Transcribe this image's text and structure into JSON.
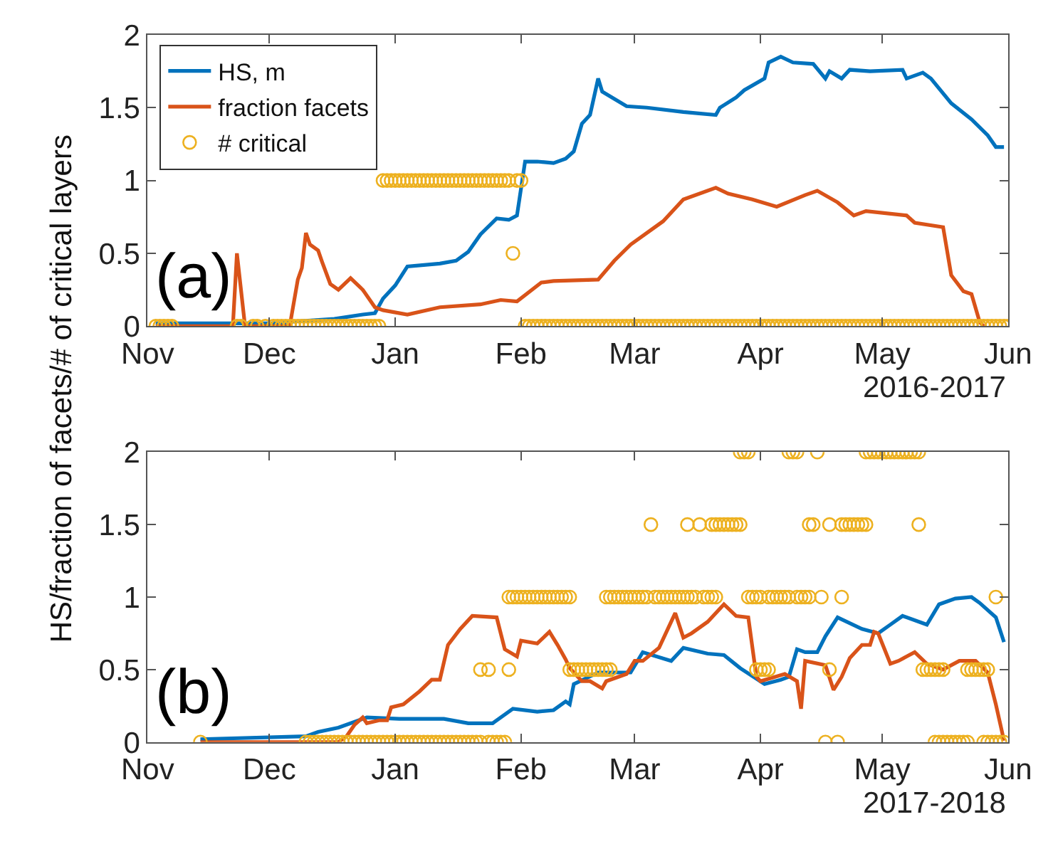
{
  "chart_data": [
    {
      "type": "line",
      "xlabel": "2016-2017",
      "ylabel": "HS/fraction of facets/# of critical layers",
      "annotations": [
        "(a)"
      ],
      "legend": "top left",
      "xlim": [
        "2016-11-01",
        "2017-06-01"
      ],
      "xticks": [
        {
          "value": "2016-11-01",
          "label": "Nov"
        },
        {
          "value": "2016-12-01",
          "label": "Dec"
        },
        {
          "value": "2017-01-01",
          "label": "Jan"
        },
        {
          "value": "2017-02-01",
          "label": "Feb"
        },
        {
          "value": "2017-03-01",
          "label": "Mar"
        },
        {
          "value": "2017-04-01",
          "label": "Apr"
        },
        {
          "value": "2017-05-01",
          "label": "May"
        },
        {
          "value": "2017-06-01",
          "label": "Jun"
        }
      ],
      "ylim": [
        0,
        2
      ],
      "yticks": [
        0,
        0.5,
        1,
        1.5,
        2
      ],
      "series": [
        {
          "name": "HS, m",
          "color": "#0072bd",
          "x": [
            "2016-11-03",
            "2016-12-04",
            "2016-12-06",
            "2016-12-17",
            "2016-12-24",
            "2016-12-27",
            "2016-12-29",
            "2017-01-01",
            "2017-01-04",
            "2017-01-12",
            "2017-01-16",
            "2017-01-19",
            "2017-01-22",
            "2017-01-26",
            "2017-01-29",
            "2017-01-31",
            "2017-02-02",
            "2017-02-05",
            "2017-02-09",
            "2017-02-12",
            "2017-02-14",
            "2017-02-16",
            "2017-02-18",
            "2017-02-20",
            "2017-02-21",
            "2017-02-24",
            "2017-02-27",
            "2017-03-04",
            "2017-03-13",
            "2017-03-21",
            "2017-03-22",
            "2017-03-26",
            "2017-03-28",
            "2017-04-02",
            "2017-04-03",
            "2017-04-06",
            "2017-04-09",
            "2017-04-14",
            "2017-04-17",
            "2017-04-18",
            "2017-04-21",
            "2017-04-23",
            "2017-04-28",
            "2017-05-06",
            "2017-05-07",
            "2017-05-11",
            "2017-05-13",
            "2017-05-18",
            "2017-05-23",
            "2017-05-27",
            "2017-05-29",
            "2017-05-31"
          ],
          "values": [
            0.02,
            0.02,
            0.03,
            0.05,
            0.08,
            0.09,
            0.19,
            0.28,
            0.41,
            0.43,
            0.45,
            0.51,
            0.63,
            0.74,
            0.73,
            0.76,
            1.13,
            1.13,
            1.12,
            1.15,
            1.2,
            1.39,
            1.45,
            1.7,
            1.61,
            1.56,
            1.51,
            1.5,
            1.47,
            1.45,
            1.5,
            1.57,
            1.62,
            1.7,
            1.81,
            1.85,
            1.81,
            1.8,
            1.7,
            1.75,
            1.7,
            1.76,
            1.75,
            1.76,
            1.7,
            1.74,
            1.7,
            1.53,
            1.42,
            1.31,
            1.23,
            1.23
          ]
        },
        {
          "name": "fraction facets",
          "color": "#d95319",
          "x": [
            "2016-11-03",
            "2016-11-22",
            "2016-11-23",
            "2016-11-25",
            "2016-12-05",
            "2016-12-06",
            "2016-12-08",
            "2016-12-09",
            "2016-12-10",
            "2016-12-11",
            "2016-12-13",
            "2016-12-14",
            "2016-12-16",
            "2016-12-18",
            "2016-12-21",
            "2016-12-24",
            "2016-12-27",
            "2016-12-29",
            "2017-01-04",
            "2017-01-12",
            "2017-01-22",
            "2017-01-27",
            "2017-01-31",
            "2017-02-06",
            "2017-02-09",
            "2017-02-20",
            "2017-02-24",
            "2017-02-28",
            "2017-03-08",
            "2017-03-13",
            "2017-03-21",
            "2017-03-24",
            "2017-03-30",
            "2017-04-05",
            "2017-04-12",
            "2017-04-15",
            "2017-04-20",
            "2017-04-24",
            "2017-04-27",
            "2017-05-07",
            "2017-05-09",
            "2017-05-16",
            "2017-05-18",
            "2017-05-21",
            "2017-05-23",
            "2017-05-25",
            "2017-05-26"
          ],
          "values": [
            0,
            0,
            0.5,
            0,
            0,
            0,
            0.32,
            0.4,
            0.64,
            0.56,
            0.52,
            0.44,
            0.29,
            0.25,
            0.33,
            0.25,
            0.13,
            0.11,
            0.08,
            0.13,
            0.15,
            0.18,
            0.17,
            0.3,
            0.31,
            0.32,
            0.45,
            0.56,
            0.72,
            0.87,
            0.95,
            0.91,
            0.87,
            0.82,
            0.9,
            0.93,
            0.85,
            0.76,
            0.79,
            0.76,
            0.71,
            0.68,
            0.35,
            0.24,
            0.22,
            0.03,
            0
          ]
        },
        {
          "name": "# critical",
          "color": "#edb120",
          "type": "scatter",
          "marker": "circle",
          "x": [
            "2016-11-03",
            "2016-11-04",
            "2016-11-05",
            "2016-11-06",
            "2016-11-07",
            "2016-11-23",
            "2016-11-24",
            "2016-11-27",
            "2016-11-28",
            "2016-11-30",
            "2016-12-02",
            "2016-12-03",
            "2016-12-04",
            "2016-12-05",
            "2016-12-06",
            "2016-12-07",
            "2016-12-08",
            "2016-12-09",
            "2016-12-10",
            "2016-12-11",
            "2016-12-12",
            "2016-12-13",
            "2016-12-14",
            "2016-12-15",
            "2016-12-16",
            "2016-12-17",
            "2016-12-18",
            "2016-12-19",
            "2016-12-20",
            "2016-12-21",
            "2016-12-22",
            "2016-12-23",
            "2016-12-24",
            "2016-12-25",
            "2016-12-26",
            "2016-12-27",
            "2016-12-28",
            "2016-12-29",
            "2016-12-30",
            "2016-12-31",
            "2017-01-01",
            "2017-01-02",
            "2017-01-03",
            "2017-01-04",
            "2017-01-05",
            "2017-01-06",
            "2017-01-07",
            "2017-01-08",
            "2017-01-09",
            "2017-01-10",
            "2017-01-11",
            "2017-01-12",
            "2017-01-13",
            "2017-01-14",
            "2017-01-15",
            "2017-01-16",
            "2017-01-17",
            "2017-01-18",
            "2017-01-19",
            "2017-01-20",
            "2017-01-21",
            "2017-01-22",
            "2017-01-23",
            "2017-01-24",
            "2017-01-25",
            "2017-01-26",
            "2017-01-27",
            "2017-01-28",
            "2017-01-29",
            "2017-01-30",
            "2017-01-31",
            "2017-02-01",
            "2017-02-02",
            "2017-02-03",
            "2017-02-04",
            "2017-02-05",
            "2017-02-06",
            "2017-02-07",
            "2017-02-08",
            "2017-02-09",
            "2017-02-10",
            "2017-02-11",
            "2017-02-12",
            "2017-02-13",
            "2017-02-14",
            "2017-02-15",
            "2017-02-16",
            "2017-02-17",
            "2017-02-18",
            "2017-02-19",
            "2017-02-20",
            "2017-02-21",
            "2017-02-22",
            "2017-02-23",
            "2017-02-24",
            "2017-02-25",
            "2017-02-26",
            "2017-02-27",
            "2017-02-28",
            "2017-03-01",
            "2017-03-02",
            "2017-03-03",
            "2017-03-04",
            "2017-03-05",
            "2017-03-06",
            "2017-03-07",
            "2017-03-08",
            "2017-03-09",
            "2017-03-10",
            "2017-03-11",
            "2017-03-12",
            "2017-03-13",
            "2017-03-14",
            "2017-03-15",
            "2017-03-16",
            "2017-03-17",
            "2017-03-18",
            "2017-03-19",
            "2017-03-20",
            "2017-03-21",
            "2017-03-22",
            "2017-03-23",
            "2017-03-24",
            "2017-03-25",
            "2017-03-26",
            "2017-03-27",
            "2017-03-28",
            "2017-03-29",
            "2017-03-30",
            "2017-03-31",
            "2017-04-01",
            "2017-04-02",
            "2017-04-03",
            "2017-04-04",
            "2017-04-05",
            "2017-04-06",
            "2017-04-07",
            "2017-04-08",
            "2017-04-09",
            "2017-04-10",
            "2017-04-11",
            "2017-04-12",
            "2017-04-13",
            "2017-04-14",
            "2017-04-15",
            "2017-04-16",
            "2017-04-17",
            "2017-04-18",
            "2017-04-19",
            "2017-04-20",
            "2017-04-21",
            "2017-04-22",
            "2017-04-23",
            "2017-04-24",
            "2017-04-25",
            "2017-04-26",
            "2017-04-27",
            "2017-04-28",
            "2017-04-29",
            "2017-04-30",
            "2017-05-01",
            "2017-05-02",
            "2017-05-03",
            "2017-05-04",
            "2017-05-05",
            "2017-05-06",
            "2017-05-07",
            "2017-05-08",
            "2017-05-09",
            "2017-05-10",
            "2017-05-11",
            "2017-05-12",
            "2017-05-13",
            "2017-05-14",
            "2017-05-15",
            "2017-05-16",
            "2017-05-17",
            "2017-05-18",
            "2017-05-19",
            "2017-05-20",
            "2017-05-21",
            "2017-05-22",
            "2017-05-23",
            "2017-05-24",
            "2017-05-25",
            "2017-05-26",
            "2017-05-27",
            "2017-05-28",
            "2017-05-29",
            "2017-05-30",
            "2017-05-31",
            "2017-06-01"
          ],
          "values": [
            0,
            0,
            0,
            0,
            0,
            0,
            0,
            0,
            0,
            0,
            0,
            0,
            0,
            0,
            0,
            0,
            0,
            0,
            0,
            0,
            0,
            0,
            0,
            0,
            0,
            0,
            0,
            0,
            0,
            0,
            0,
            0,
            0,
            0,
            0,
            0,
            0,
            1,
            1,
            1,
            1,
            1,
            1,
            1,
            1,
            1,
            1,
            1,
            1,
            1,
            1,
            1,
            1,
            1,
            1,
            1,
            1,
            1,
            1,
            1,
            1,
            1,
            1,
            1,
            1,
            1,
            1,
            1,
            1,
            0.5,
            1,
            1,
            0,
            0,
            0,
            0,
            0,
            0,
            0,
            0,
            0,
            0,
            0,
            0,
            0,
            0,
            0,
            0,
            0,
            0,
            0,
            0,
            0,
            0,
            0,
            0,
            0,
            0,
            0,
            0,
            0,
            0,
            0,
            0,
            0,
            0,
            0,
            0,
            0,
            0,
            0,
            0,
            0,
            0,
            0,
            0,
            0,
            0,
            0,
            0,
            0,
            0,
            0,
            0,
            0,
            0,
            0,
            0,
            0,
            0,
            0,
            0,
            0,
            0,
            0,
            0,
            0,
            0,
            0,
            0,
            0,
            0,
            0,
            0,
            0,
            0,
            0,
            0,
            0,
            0,
            0,
            0,
            0,
            0,
            0,
            0,
            0,
            0,
            0,
            0,
            0,
            0,
            0,
            0,
            0,
            0,
            0,
            0,
            0,
            0,
            0,
            0,
            0,
            0,
            0,
            0,
            0,
            0,
            0,
            0,
            0,
            0,
            0,
            0,
            0,
            0,
            0,
            0,
            0,
            0,
            0,
            0
          ]
        }
      ]
    },
    {
      "type": "line",
      "xlabel": "2017-2018",
      "annotations": [
        "(b)"
      ],
      "xlim": [
        "2017-11-01",
        "2018-06-01"
      ],
      "xticks": [
        {
          "value": "2017-11-01",
          "label": "Nov"
        },
        {
          "value": "2017-12-01",
          "label": "Dec"
        },
        {
          "value": "2018-01-01",
          "label": "Jan"
        },
        {
          "value": "2018-02-01",
          "label": "Feb"
        },
        {
          "value": "2018-03-01",
          "label": "Mar"
        },
        {
          "value": "2018-04-01",
          "label": "Apr"
        },
        {
          "value": "2018-05-01",
          "label": "May"
        },
        {
          "value": "2018-06-01",
          "label": "Jun"
        }
      ],
      "ylim": [
        0,
        2
      ],
      "yticks": [
        0,
        0.5,
        1,
        1.5,
        2
      ],
      "series": [
        {
          "color": "#0072bd",
          "x": [
            "2017-11-14",
            "2017-12-10",
            "2017-12-13",
            "2017-12-18",
            "2017-12-25",
            "2018-01-02",
            "2018-01-13",
            "2018-01-19",
            "2018-01-25",
            "2018-01-30",
            "2018-02-05",
            "2018-02-09",
            "2018-02-12",
            "2018-02-13",
            "2018-02-14",
            "2018-02-20",
            "2018-02-28",
            "2018-03-03",
            "2018-03-10",
            "2018-03-13",
            "2018-03-19",
            "2018-03-23",
            "2018-03-27",
            "2018-04-02",
            "2018-04-06",
            "2018-04-08",
            "2018-04-10",
            "2018-04-12",
            "2018-04-15",
            "2018-04-17",
            "2018-04-20",
            "2018-04-26",
            "2018-04-30",
            "2018-05-03",
            "2018-05-06",
            "2018-05-12",
            "2018-05-15",
            "2018-05-19",
            "2018-05-23",
            "2018-05-25",
            "2018-05-29",
            "2018-05-31"
          ],
          "values": [
            0.02,
            0.04,
            0.07,
            0.1,
            0.17,
            0.16,
            0.16,
            0.13,
            0.13,
            0.23,
            0.21,
            0.22,
            0.28,
            0.26,
            0.4,
            0.48,
            0.48,
            0.62,
            0.56,
            0.65,
            0.61,
            0.6,
            0.51,
            0.4,
            0.43,
            0.45,
            0.64,
            0.62,
            0.62,
            0.73,
            0.86,
            0.78,
            0.75,
            0.81,
            0.87,
            0.81,
            0.95,
            0.99,
            1.0,
            0.96,
            0.86,
            0.69
          ]
        },
        {
          "color": "#d95319",
          "x": [
            "2017-11-14",
            "2017-12-18",
            "2017-12-20",
            "2017-12-22",
            "2017-12-24",
            "2017-12-25",
            "2017-12-28",
            "2017-12-30",
            "2017-12-31",
            "2018-01-03",
            "2018-01-07",
            "2018-01-10",
            "2018-01-12",
            "2018-01-14",
            "2018-01-17",
            "2018-01-20",
            "2018-01-26",
            "2018-01-28",
            "2018-01-31",
            "2018-02-01",
            "2018-02-05",
            "2018-02-08",
            "2018-02-10",
            "2018-02-12",
            "2018-02-13",
            "2018-02-16",
            "2018-02-18",
            "2018-02-21",
            "2018-02-22",
            "2018-02-27",
            "2018-03-01",
            "2018-03-03",
            "2018-03-07",
            "2018-03-11",
            "2018-03-13",
            "2018-03-15",
            "2018-03-19",
            "2018-03-23",
            "2018-03-26",
            "2018-03-29",
            "2018-03-31",
            "2018-04-01",
            "2018-04-07",
            "2018-04-10",
            "2018-04-11",
            "2018-04-12",
            "2018-04-17",
            "2018-04-19",
            "2018-04-21",
            "2018-04-23",
            "2018-04-26",
            "2018-04-28",
            "2018-04-29",
            "2018-04-30",
            "2018-05-03",
            "2018-05-05",
            "2018-05-07",
            "2018-05-09",
            "2018-05-12",
            "2018-05-16",
            "2018-05-20",
            "2018-05-24",
            "2018-05-27",
            "2018-05-29",
            "2018-05-31"
          ],
          "values": [
            0,
            0,
            0.04,
            0.12,
            0.17,
            0.13,
            0.15,
            0.15,
            0.24,
            0.26,
            0.35,
            0.43,
            0.43,
            0.67,
            0.78,
            0.87,
            0.86,
            0.64,
            0.59,
            0.7,
            0.68,
            0.76,
            0.67,
            0.57,
            0.51,
            0.42,
            0.42,
            0.37,
            0.42,
            0.47,
            0.56,
            0.56,
            0.65,
            0.89,
            0.72,
            0.75,
            0.83,
            0.95,
            0.87,
            0.86,
            0.45,
            0.42,
            0.47,
            0.42,
            0.23,
            0.56,
            0.53,
            0.36,
            0.45,
            0.58,
            0.67,
            0.67,
            0.76,
            0.75,
            0.54,
            0.56,
            0.59,
            0.62,
            0.54,
            0.5,
            0.56,
            0.56,
            0.48,
            0.26,
            0.01
          ]
        },
        {
          "color": "#edb120",
          "type": "scatter",
          "marker": "circle",
          "x": [
            "2017-11-14",
            "2017-12-10",
            "2017-12-11",
            "2017-12-12",
            "2017-12-13",
            "2017-12-14",
            "2017-12-15",
            "2017-12-16",
            "2017-12-17",
            "2017-12-18",
            "2017-12-19",
            "2017-12-20",
            "2017-12-21",
            "2017-12-22",
            "2017-12-23",
            "2017-12-24",
            "2017-12-25",
            "2017-12-26",
            "2017-12-27",
            "2017-12-28",
            "2017-12-29",
            "2017-12-30",
            "2017-12-31",
            "2018-01-01",
            "2018-01-02",
            "2018-01-03",
            "2018-01-04",
            "2018-01-05",
            "2018-01-06",
            "2018-01-07",
            "2018-01-08",
            "2018-01-09",
            "2018-01-10",
            "2018-01-11",
            "2018-01-12",
            "2018-01-13",
            "2018-01-14",
            "2018-01-15",
            "2018-01-16",
            "2018-01-17",
            "2018-01-18",
            "2018-01-19",
            "2018-01-20",
            "2018-01-21",
            "2018-01-22",
            "2018-01-24",
            "2018-01-25",
            "2018-01-26",
            "2018-01-27",
            "2018-01-28",
            "2018-04-17",
            "2018-04-20",
            "2018-05-14",
            "2018-05-15",
            "2018-05-16",
            "2018-05-17",
            "2018-05-18",
            "2018-05-19",
            "2018-05-20",
            "2018-05-21",
            "2018-05-22",
            "2018-05-26",
            "2018-05-27",
            "2018-05-28",
            "2018-05-29",
            "2018-05-30",
            "2018-05-31",
            "2018-01-22",
            "2018-01-24",
            "2018-01-29",
            "2018-02-13",
            "2018-02-14",
            "2018-02-15",
            "2018-02-16",
            "2018-02-17",
            "2018-02-18",
            "2018-02-19",
            "2018-02-20",
            "2018-02-21",
            "2018-02-22",
            "2018-02-23",
            "2018-03-31",
            "2018-04-01",
            "2018-04-02",
            "2018-04-03",
            "2018-04-18",
            "2018-05-11",
            "2018-05-12",
            "2018-05-13",
            "2018-05-14",
            "2018-05-15",
            "2018-05-16",
            "2018-05-22",
            "2018-05-23",
            "2018-05-24",
            "2018-05-25",
            "2018-05-26",
            "2018-05-27",
            "2018-01-29",
            "2018-01-30",
            "2018-01-31",
            "2018-02-01",
            "2018-02-02",
            "2018-02-03",
            "2018-02-04",
            "2018-02-05",
            "2018-02-06",
            "2018-02-07",
            "2018-02-08",
            "2018-02-09",
            "2018-02-10",
            "2018-02-11",
            "2018-02-12",
            "2018-02-13",
            "2018-02-22",
            "2018-02-23",
            "2018-02-24",
            "2018-02-25",
            "2018-02-26",
            "2018-02-27",
            "2018-02-28",
            "2018-03-01",
            "2018-03-02",
            "2018-03-03",
            "2018-03-04",
            "2018-03-06",
            "2018-03-07",
            "2018-03-08",
            "2018-03-09",
            "2018-03-10",
            "2018-03-11",
            "2018-03-12",
            "2018-03-13",
            "2018-03-14",
            "2018-03-15",
            "2018-03-16",
            "2018-03-18",
            "2018-03-19",
            "2018-03-20",
            "2018-03-21",
            "2018-03-29",
            "2018-03-30",
            "2018-03-31",
            "2018-04-01",
            "2018-04-03",
            "2018-04-04",
            "2018-04-05",
            "2018-04-06",
            "2018-04-07",
            "2018-04-08",
            "2018-04-10",
            "2018-04-11",
            "2018-04-12",
            "2018-04-13",
            "2018-04-16",
            "2018-04-21",
            "2018-05-29",
            "2018-03-05",
            "2018-03-14",
            "2018-03-17",
            "2018-03-20",
            "2018-03-21",
            "2018-03-22",
            "2018-03-23",
            "2018-03-24",
            "2018-03-25",
            "2018-03-26",
            "2018-03-27",
            "2018-04-13",
            "2018-04-14",
            "2018-04-18",
            "2018-04-21",
            "2018-04-22",
            "2018-04-23",
            "2018-04-24",
            "2018-04-25",
            "2018-04-26",
            "2018-04-27",
            "2018-05-10",
            "2018-03-27",
            "2018-03-28",
            "2018-03-29",
            "2018-04-08",
            "2018-04-09",
            "2018-04-10",
            "2018-04-15",
            "2018-04-27",
            "2018-04-28",
            "2018-04-29",
            "2018-04-30",
            "2018-05-01",
            "2018-05-02",
            "2018-05-03",
            "2018-05-04",
            "2018-05-05",
            "2018-05-06",
            "2018-05-07",
            "2018-05-08",
            "2018-05-09",
            "2018-05-10"
          ],
          "values": [
            0,
            0,
            0,
            0,
            0,
            0,
            0,
            0,
            0,
            0,
            0,
            0,
            0,
            0,
            0,
            0,
            0,
            0,
            0,
            0,
            0,
            0,
            0,
            0,
            0,
            0,
            0,
            0,
            0,
            0,
            0,
            0,
            0,
            0,
            0,
            0,
            0,
            0,
            0,
            0,
            0,
            0,
            0,
            0,
            0,
            0,
            0,
            0,
            0,
            0,
            0,
            0,
            0,
            0,
            0,
            0,
            0,
            0,
            0,
            0,
            0,
            0,
            0,
            0,
            0,
            0,
            0,
            0.5,
            0.5,
            0.5,
            0.5,
            0.5,
            0.5,
            0.5,
            0.5,
            0.5,
            0.5,
            0.5,
            0.5,
            0.5,
            0.5,
            0.5,
            0.5,
            0.5,
            0.5,
            0.5,
            0.5,
            0.5,
            0.5,
            0.5,
            0.5,
            0.5,
            0.5,
            0.5,
            0.5,
            0.5,
            0.5,
            0.5,
            1,
            1,
            1,
            1,
            1,
            1,
            1,
            1,
            1,
            1,
            1,
            1,
            1,
            1,
            1,
            1,
            1,
            1,
            1,
            1,
            1,
            1,
            1,
            1,
            1,
            1,
            1,
            1,
            1,
            1,
            1,
            1,
            1,
            1,
            1,
            1,
            1,
            1,
            1,
            1,
            1,
            1,
            1,
            1,
            1,
            1,
            1,
            1,
            1,
            1,
            1,
            1,
            1,
            1,
            1,
            1,
            1,
            1,
            1,
            1.5,
            1.5,
            1.5,
            1.5,
            1.5,
            1.5,
            1.5,
            1.5,
            1.5,
            1.5,
            1.5,
            1.5,
            1.5,
            1.5,
            1.5,
            1.5,
            1.5,
            1.5,
            1.5,
            1.5,
            1.5,
            1.5,
            2,
            2,
            2,
            2,
            2,
            2,
            2,
            2,
            2,
            2,
            2,
            2,
            2,
            2,
            2,
            2,
            2,
            2,
            2,
            2,
            2
          ]
        }
      ]
    }
  ]
}
